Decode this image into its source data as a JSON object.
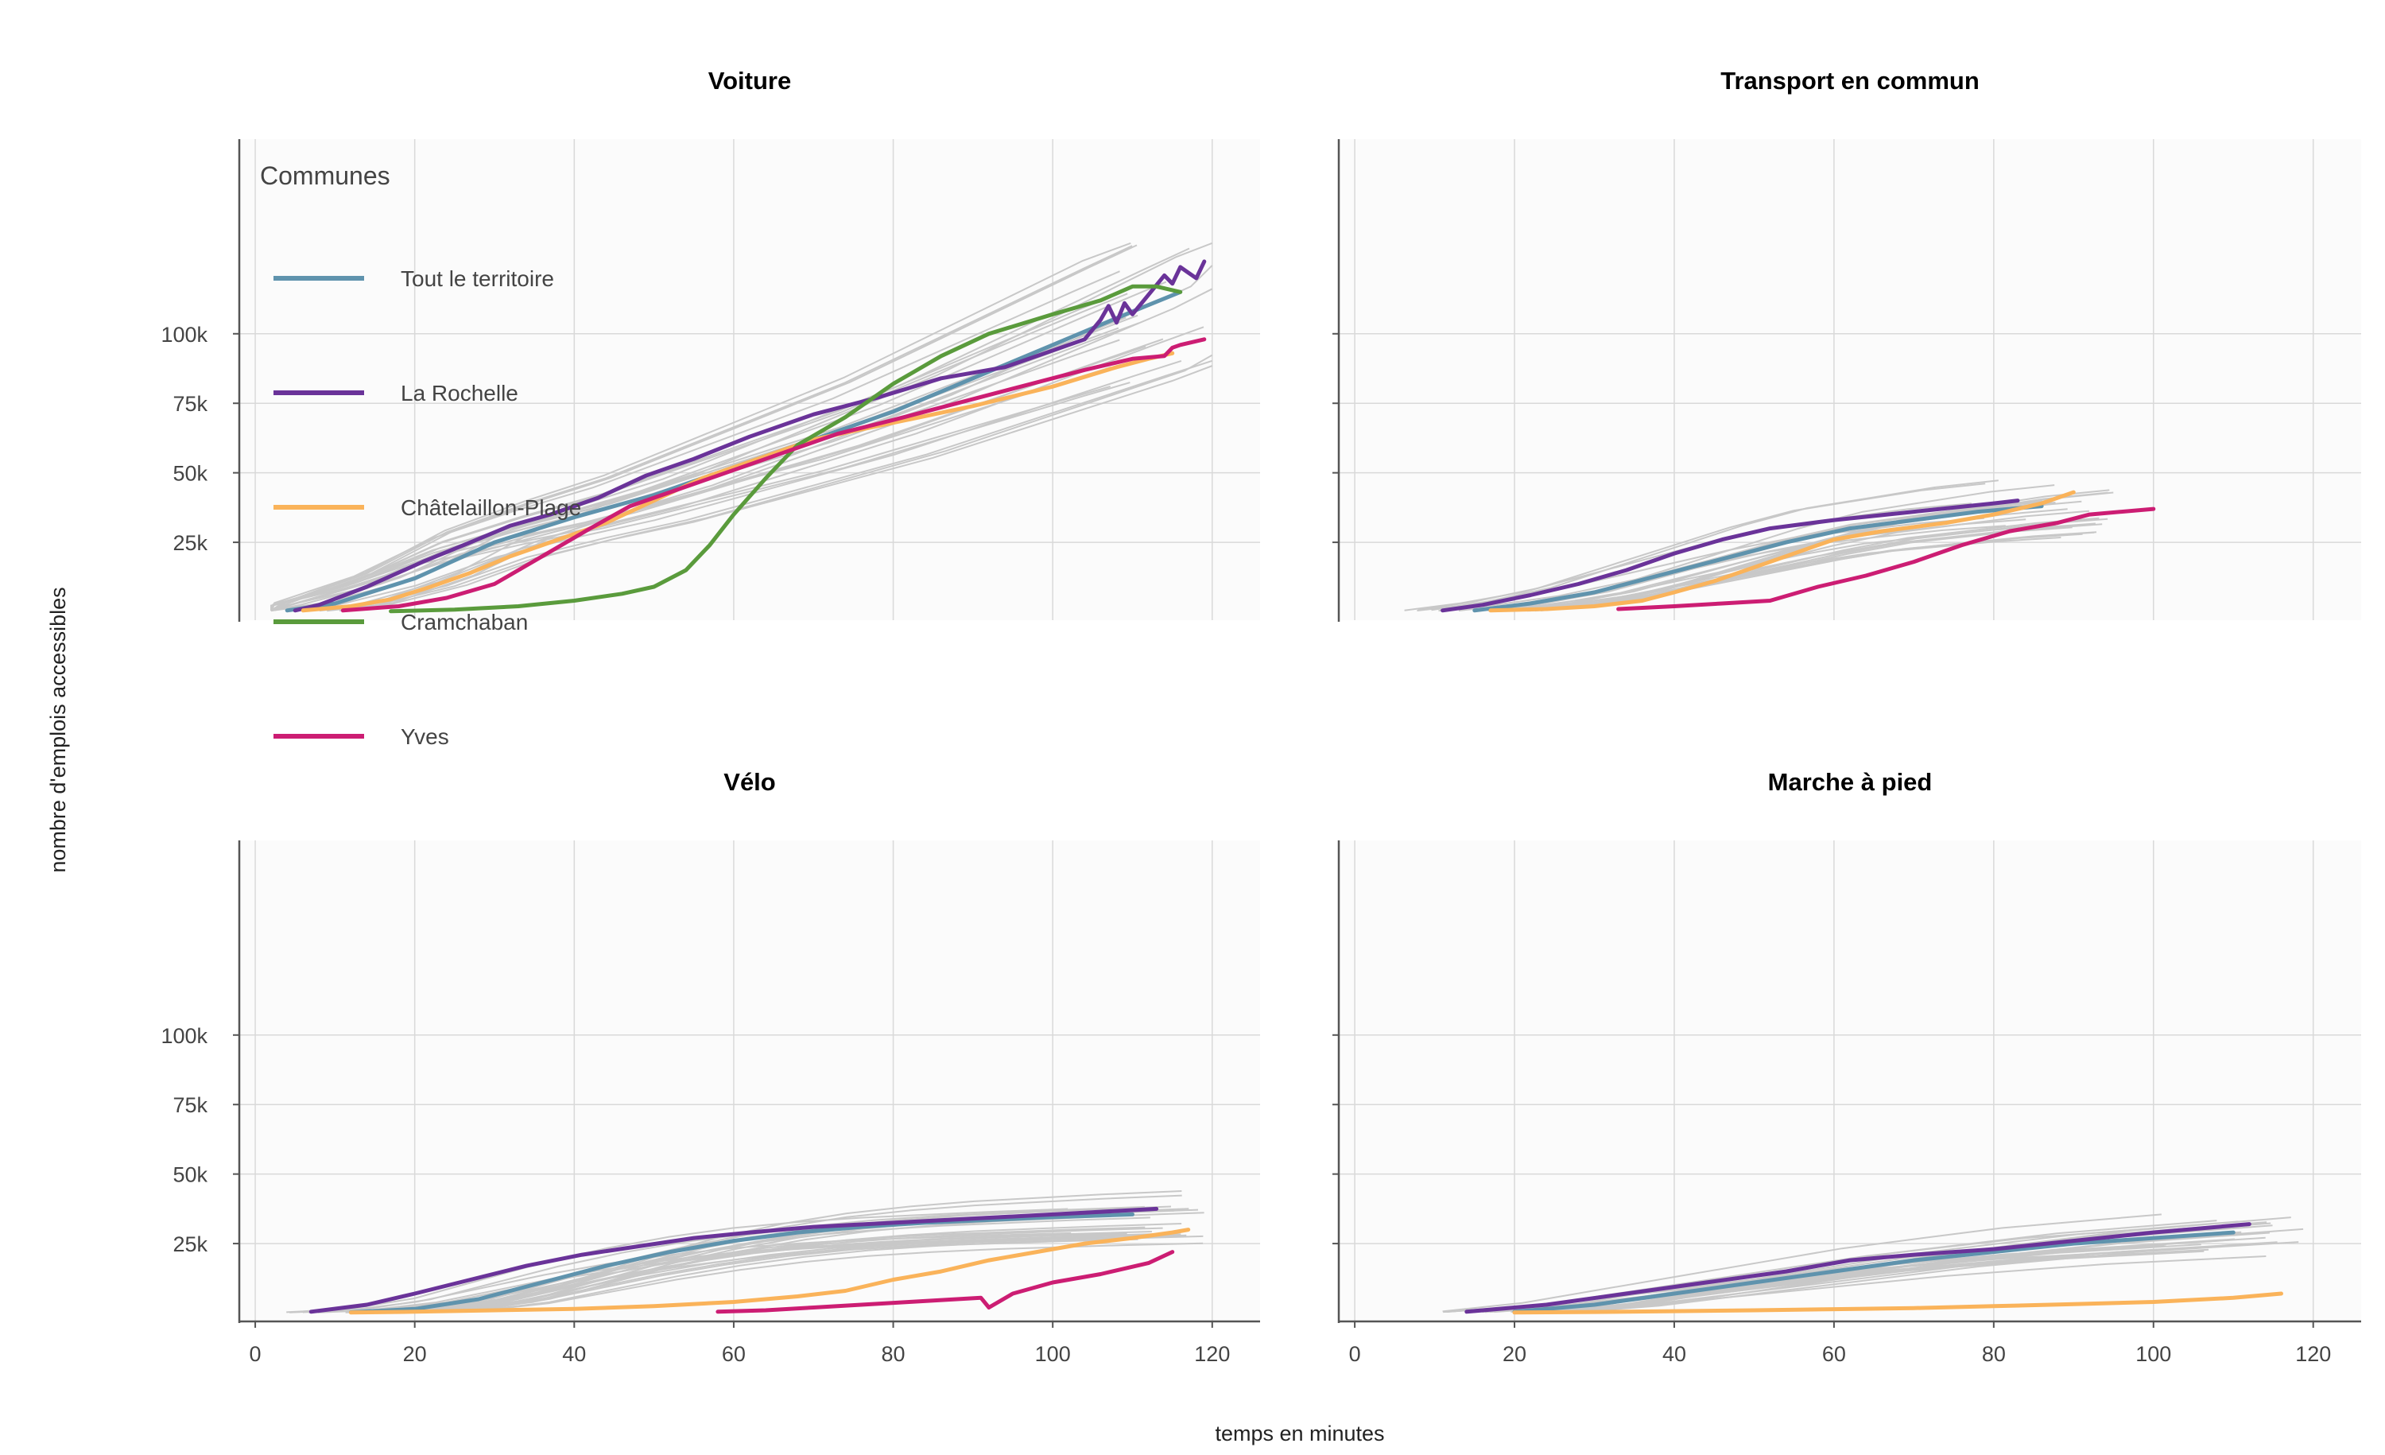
{
  "chart_data": {
    "type": "line",
    "xlabel": "temps en minutes",
    "ylabel": "nombre d'emplois accessibles",
    "xlim": [
      -2,
      126
    ],
    "ylim": [
      -3000,
      170000
    ],
    "x_ticks": [
      0,
      20,
      40,
      60,
      80,
      100,
      120
    ],
    "x_tick_labels": [
      "0",
      "20",
      "40",
      "60",
      "80",
      "100",
      "120"
    ],
    "y_ticks": [
      25000,
      50000,
      75000,
      100000
    ],
    "y_tick_labels": [
      "25k",
      "50k",
      "75k",
      "100k"
    ],
    "grid": true,
    "legend": {
      "title": "Communes",
      "placement": "top-left",
      "entries": [
        {
          "label": "Tout le territoire",
          "color": "#5f93ad"
        },
        {
          "label": "La Rochelle",
          "color": "#6a3399"
        },
        {
          "label": "Châtelaillon-Plage",
          "color": "#fab35a"
        },
        {
          "label": "Cramchaban",
          "color": "#5a9b3c"
        },
        {
          "label": "Yves",
          "color": "#cc1d73"
        }
      ]
    },
    "panels": [
      {
        "title": "Voiture",
        "series": [
          {
            "name": "Tout le territoire",
            "color": "#5f93ad",
            "x": [
              4,
              10,
              20,
              30,
              40,
              50,
              60,
              70,
              80,
              90,
              100,
              110,
              116
            ],
            "y": [
              500,
              3000,
              12000,
              25000,
              34000,
              42000,
              52000,
              62000,
              72000,
              84000,
              96000,
              108000,
              115000
            ]
          },
          {
            "name": "La Rochelle",
            "color": "#6a3399",
            "x": [
              5,
              8,
              14,
              21,
              27,
              32,
              37,
              43,
              49,
              55,
              62,
              70,
              78,
              86,
              94,
              100,
              104,
              106,
              107,
              108,
              109,
              110,
              112,
              114,
              115,
              116,
              117,
              118,
              119
            ],
            "y": [
              500,
              2500,
              9000,
              18000,
              25000,
              31000,
              35000,
              41000,
              49000,
              55000,
              63000,
              71000,
              77000,
              84000,
              88000,
              94000,
              98000,
              105000,
              110000,
              104000,
              111000,
              107000,
              114000,
              121000,
              118000,
              124000,
              122000,
              120000,
              126000
            ]
          },
          {
            "name": "Châtelaillon-Plage",
            "color": "#fab35a",
            "x": [
              6,
              12,
              17,
              22,
              27,
              32,
              38,
              44,
              50,
              56,
              62,
              70,
              80,
              90,
              100,
              108,
              112,
              115
            ],
            "y": [
              500,
              2000,
              4500,
              9000,
              14000,
              20000,
              26000,
              32000,
              40000,
              48000,
              54000,
              62000,
              68000,
              74000,
              81000,
              88000,
              91000,
              93000
            ]
          },
          {
            "name": "Cramchaban",
            "color": "#5a9b3c",
            "x": [
              17,
              25,
              33,
              40,
              46,
              50,
              54,
              57,
              60,
              64,
              68,
              74,
              80,
              86,
              92,
              100,
              106,
              110,
              113,
              116
            ],
            "y": [
              200,
              800,
              2000,
              4000,
              6500,
              9000,
              15000,
              24000,
              35000,
              48000,
              60000,
              70000,
              82000,
              92000,
              100000,
              107000,
              112000,
              117000,
              117000,
              115000
            ]
          },
          {
            "name": "Yves",
            "color": "#cc1d73",
            "x": [
              11,
              18,
              24,
              30,
              36,
              42,
              47,
              53,
              60,
              66,
              73,
              80,
              88,
              96,
              104,
              110,
              114,
              115,
              116,
              119
            ],
            "y": [
              500,
              2000,
              5000,
              10000,
              20000,
              30000,
              38000,
              44000,
              51000,
              57000,
              64000,
              69000,
              75000,
              81000,
              87000,
              91000,
              92000,
              95000,
              96000,
              98000
            ]
          }
        ]
      },
      {
        "title": "Transport en commun",
        "series": [
          {
            "name": "Tout le territoire",
            "color": "#5f93ad",
            "x": [
              15,
              22,
              30,
              38,
              46,
              54,
              62,
              70,
              78,
              86
            ],
            "y": [
              500,
              3000,
              7000,
              13000,
              19000,
              25000,
              30000,
              33000,
              36000,
              38000
            ]
          },
          {
            "name": "La Rochelle",
            "color": "#6a3399",
            "x": [
              11,
              16,
              22,
              28,
              34,
              40,
              46,
              52,
              60,
              70,
              80,
              83
            ],
            "y": [
              500,
              2500,
              6000,
              10000,
              15000,
              21000,
              26000,
              30000,
              33000,
              36000,
              39000,
              40000
            ]
          },
          {
            "name": "Châtelaillon-Plage",
            "color": "#fab35a",
            "x": [
              17,
              24,
              30,
              36,
              40,
              45,
              50,
              55,
              60,
              66,
              74,
              80,
              86,
              90
            ],
            "y": [
              500,
              1000,
              2000,
              4000,
              7000,
              11000,
              16000,
              21000,
              26000,
              29000,
              32000,
              35000,
              39000,
              43000
            ]
          },
          {
            "name": "Yves",
            "color": "#cc1d73",
            "x": [
              33,
              40,
              46,
              52,
              58,
              64,
              70,
              76,
              82,
              88,
              92,
              100
            ],
            "y": [
              1000,
              2000,
              3000,
              4000,
              9000,
              13000,
              18000,
              24000,
              29000,
              32000,
              35000,
              37000
            ]
          }
        ]
      },
      {
        "title": "Vélo",
        "series": [
          {
            "name": "Tout le territoire",
            "color": "#5f93ad",
            "x": [
              12,
              20,
              28,
              36,
              44,
              52,
              60,
              68,
              76,
              84,
              92,
              100,
              110
            ],
            "y": [
              300,
              1500,
              5000,
              11000,
              17000,
              22000,
              26000,
              29000,
              31000,
              32500,
              33500,
              34500,
              35500
            ]
          },
          {
            "name": "La Rochelle",
            "color": "#6a3399",
            "x": [
              7,
              14,
              20,
              27,
              34,
              41,
              48,
              55,
              62,
              70,
              80,
              90,
              100,
              113
            ],
            "y": [
              500,
              3000,
              7000,
              12000,
              17000,
              21000,
              24000,
              27000,
              29000,
              31000,
              32500,
              34000,
              35500,
              37500
            ]
          },
          {
            "name": "Châtelaillon-Plage",
            "color": "#fab35a",
            "x": [
              12,
              20,
              30,
              40,
              50,
              60,
              68,
              74,
              80,
              86,
              92,
              98,
              104,
              110,
              115,
              117
            ],
            "y": [
              200,
              500,
              1000,
              1500,
              2500,
              4000,
              6000,
              8000,
              12000,
              15000,
              19000,
              22000,
              25000,
              27000,
              29000,
              30000
            ]
          },
          {
            "name": "Yves",
            "color": "#cc1d73",
            "x": [
              58,
              64,
              70,
              76,
              82,
              88,
              91,
              92,
              95,
              100,
              106,
              112,
              115
            ],
            "y": [
              500,
              1000,
              2000,
              3000,
              4000,
              5000,
              5500,
              2000,
              7000,
              11000,
              14000,
              18000,
              22000
            ]
          }
        ]
      },
      {
        "title": "Marche à pied",
        "series": [
          {
            "name": "Tout le territoire",
            "color": "#5f93ad",
            "x": [
              20,
              30,
              40,
              50,
              60,
              70,
              80,
              90,
              100,
              110
            ],
            "y": [
              500,
              3000,
              7000,
              11000,
              15000,
              19000,
              22000,
              25000,
              27000,
              29000
            ]
          },
          {
            "name": "La Rochelle",
            "color": "#6a3399",
            "x": [
              14,
              24,
              34,
              44,
              54,
              62,
              70,
              80,
              90,
              100,
              112
            ],
            "y": [
              500,
              3000,
              7000,
              11000,
              15000,
              19000,
              21000,
              23000,
              26000,
              29000,
              32000
            ]
          },
          {
            "name": "Châtelaillon-Plage",
            "color": "#fab35a",
            "x": [
              20,
              30,
              40,
              50,
              60,
              70,
              80,
              90,
              100,
              110,
              116
            ],
            "y": [
              200,
              400,
              700,
              1000,
              1400,
              1800,
              2500,
              3200,
              4000,
              5500,
              7000
            ]
          }
        ]
      }
    ]
  }
}
